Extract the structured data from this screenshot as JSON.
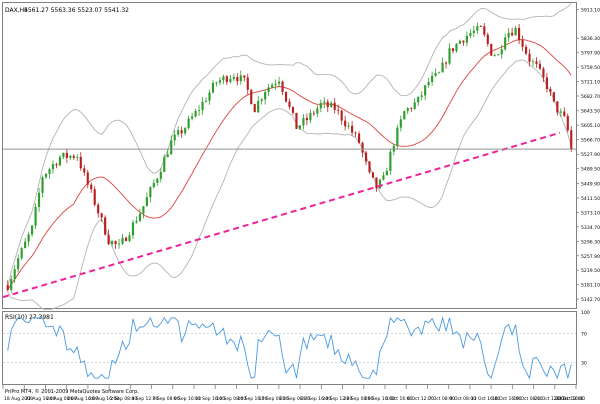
{
  "chart_data": {
    "type": "candlestick",
    "timeframe": "H4",
    "header": {
      "symbol": "DAX,H4",
      "quote": "5561.27 5563.36 5523.07 5541.32"
    },
    "y_ticks": [
      "5913.10",
      "5836.30",
      "5797.90",
      "5759.50",
      "5721.10",
      "5682.70",
      "5643.50",
      "5605.10",
      "5566.70",
      "5527.90",
      "5489.50",
      "5449.90",
      "5411.50",
      "5373.10",
      "5334.70",
      "5296.30",
      "5257.90",
      "5219.50",
      "5181.10",
      "5142.70"
    ],
    "ylim": [
      5119,
      5930
    ],
    "x_ticks": [
      "18 Aug 2009",
      "21 Aug 16:00",
      "24 Aug 08:00",
      "26 Aug 16:00",
      "28 Aug 16:00",
      "2 Sep 08:00",
      "4 Sep 12:00",
      "7 Sep 08:00",
      "9 Sep 16:00",
      "11 Sep 16:00",
      "14 Sep 08:00",
      "16 Sep 16:00",
      "17 Sep 08:00",
      "21 Sep 08:00",
      "22 Sep 16:00",
      "24 Sep 12:00",
      "28 Sep 08:00",
      "29 Sep 16:00",
      "1 Oct 16:00",
      "6 Oct 12:00",
      "7 Oct 08:00",
      "9 Oct 08:00",
      "13 Oct 16:00",
      "16 Oct 16:00",
      "19 Oct 08:00",
      "21 Oct 12:00",
      "23 Oct 16:00",
      "28 Oct 12:00"
    ],
    "current_price": 5541.32,
    "colors": {
      "bull": "#2e9e2e",
      "bear": "#b82020",
      "bands": "#b4b4b4",
      "moving_average": "#e04040",
      "trendline": "#ee2299",
      "rsi": "#4a9ae0",
      "price_line": "#909090"
    },
    "overlays": [
      "Bollinger Bands",
      "Moving Average",
      "Trend line (dashed)"
    ],
    "trendline": {
      "start": 5148,
      "end": 5585
    },
    "rsi_panel": {
      "label": "RSI(10) 27.3981",
      "ylim": [
        0,
        100
      ],
      "ticks": [
        "100",
        "70",
        "30"
      ],
      "latest": 27.3981
    },
    "copyright": "PriPro MT4, © 2001-2009 MetaQuotes Software Corp."
  }
}
